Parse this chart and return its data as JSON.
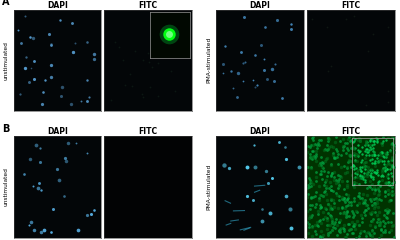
{
  "outer_bg": "#ffffff",
  "panel_border_color": "#444444",
  "panel_label_A": "A",
  "panel_label_B": "B",
  "label_fontsize": 5.5,
  "panel_letter_fontsize": 7,
  "row_label_fontsize": 4.2,
  "panels": {
    "A_unstim_DAPI": {
      "bg": "#030608",
      "type": "dapi_sparse",
      "dot_color": "#5599cc",
      "dot_size": 2.5,
      "n_dots": 35
    },
    "A_unstim_FITC": {
      "bg": "#030608",
      "type": "fitc_sparse_inset",
      "dot_color": "#1a3322",
      "dot_size": 1.5,
      "n_dots": 20,
      "inset_bg": "#020a02",
      "inset_type": "single_green_cell"
    },
    "A_pma_DAPI": {
      "bg": "#030608",
      "type": "dapi_sparse",
      "dot_color": "#4488bb",
      "dot_size": 2.5,
      "n_dots": 30
    },
    "A_pma_FITC": {
      "bg": "#030608",
      "type": "fitc_dim",
      "dot_color": "#1a3322",
      "dot_size": 1.5,
      "n_dots": 15
    },
    "B_unstim_DAPI": {
      "bg": "#030608",
      "type": "dapi_medium",
      "dot_color": "#55aadd",
      "dot_size": 3,
      "n_dots": 28
    },
    "B_unstim_FITC": {
      "bg": "#020304",
      "type": "empty",
      "dot_color": "#000000",
      "dot_size": 1,
      "n_dots": 0
    },
    "B_pma_DAPI": {
      "bg": "#030608",
      "type": "dapi_dense_elongated",
      "dot_color": "#44aadd",
      "dot_size": 3,
      "n_dots": 25
    },
    "B_pma_FITC": {
      "bg": "#003300",
      "type": "fitc_dense_inset",
      "dot_color": "#00aa44",
      "dot_size": 4,
      "n_dots": 200,
      "inset_bg": "#004400",
      "inset_type": "green_dense"
    }
  }
}
